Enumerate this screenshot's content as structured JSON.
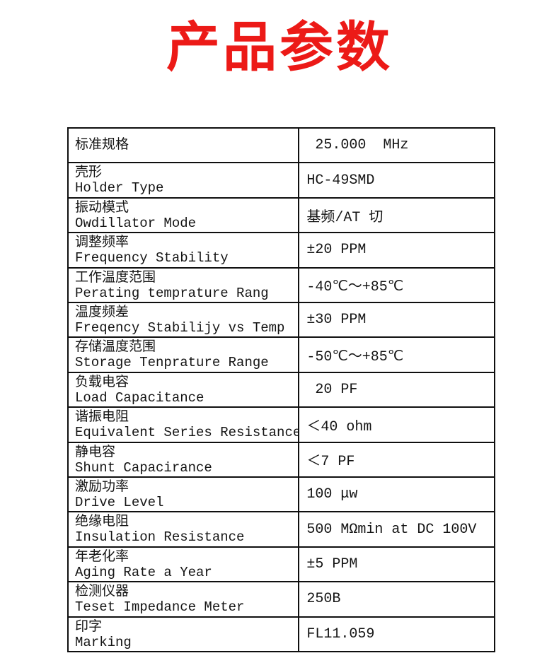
{
  "title": "产品参数",
  "title_color": "#ec1a17",
  "table": {
    "rows": [
      {
        "label_zh": "标准规格",
        "label_en": "",
        "value": " 25.000  MHz"
      },
      {
        "label_zh": "壳形",
        "label_en": "Holder Type",
        "value": "HC-49SMD"
      },
      {
        "label_zh": "振动模式",
        "label_en": "Owdillator Mode",
        "value": "基频/AT 切"
      },
      {
        "label_zh": "调整频率",
        "label_en": "Frequency Stability",
        "value": "±20 PPM"
      },
      {
        "label_zh": "工作温度范围",
        "label_en": "Perating temprature Rang",
        "value": "-40℃～+85℃"
      },
      {
        "label_zh": "温度频差",
        "label_en": "Freqency Stabilijy vs Temp",
        "value": "±30 PPM"
      },
      {
        "label_zh": "存储温度范围",
        "label_en": "Storage Tenprature Range",
        "value": "-50℃～+85℃"
      },
      {
        "label_zh": "负载电容",
        "label_en": "Load Capacitance",
        "value": " 20 PF"
      },
      {
        "label_zh": "谐振电阻",
        "label_en": "Equivalent Series Resistance",
        "value": "＜40 ohm"
      },
      {
        "label_zh": "静电容",
        "label_en": "Shunt Capacirance",
        "value": "＜7 PF"
      },
      {
        "label_zh": "激励功率",
        "label_en": "Drive Level",
        "value": "100 μw"
      },
      {
        "label_zh": "绝缘电阻",
        "label_en": "Insulation Resistance",
        "value": "500 MΩmin at DC 100V"
      },
      {
        "label_zh": "年老化率",
        "label_en": "Aging Rate a Year",
        "value": "±5 PPM"
      },
      {
        "label_zh": "检测仪器",
        "label_en": "Teset Impedance Meter",
        "value": "250B"
      },
      {
        "label_zh": "印字",
        "label_en": "Marking",
        "value": "FL11.059"
      }
    ]
  }
}
